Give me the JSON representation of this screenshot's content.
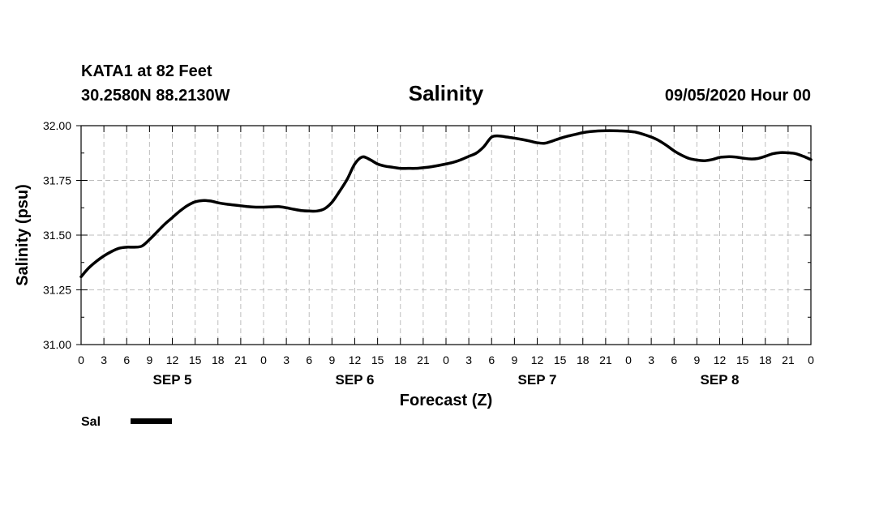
{
  "header": {
    "station": "KATA1 at 82 Feet",
    "coords": "30.2580N 88.2130W",
    "title": "Salinity",
    "datetime": "09/05/2020 Hour 00"
  },
  "legend": {
    "label": "Sal",
    "color": "#000000"
  },
  "chart_data": {
    "type": "line",
    "title": "Salinity",
    "xlabel": "Forecast (Z)",
    "ylabel": "Salinity (psu)",
    "ylim": [
      31.0,
      32.0
    ],
    "yticks": [
      "31.00",
      "31.25",
      "31.50",
      "31.75",
      "32.00"
    ],
    "xlim": [
      0,
      96
    ],
    "xtick_labels": [
      "0",
      "3",
      "6",
      "9",
      "12",
      "15",
      "18",
      "21",
      "0",
      "3",
      "6",
      "9",
      "12",
      "15",
      "18",
      "21",
      "0",
      "3",
      "6",
      "9",
      "12",
      "15",
      "18",
      "21",
      "0",
      "3",
      "6",
      "9",
      "12",
      "15",
      "18",
      "21",
      "0"
    ],
    "day_labels": [
      "SEP 5",
      "SEP 6",
      "SEP 7",
      "SEP 8"
    ],
    "grid": true,
    "legend_position": "bottom-left",
    "series": [
      {
        "name": "Sal",
        "color": "#000000",
        "x": [
          0,
          1,
          2,
          3,
          4,
          5,
          6,
          7,
          8,
          9,
          10,
          11,
          12,
          13,
          14,
          15,
          16,
          17,
          18,
          19,
          20,
          21,
          22,
          23,
          24,
          25,
          26,
          27,
          28,
          29,
          30,
          31,
          32,
          33,
          34,
          35,
          36,
          37,
          38,
          39,
          40,
          41,
          42,
          43,
          44,
          45,
          46,
          47,
          48,
          49,
          50,
          51,
          52,
          53,
          54,
          55,
          56,
          57,
          58,
          59,
          60,
          61,
          62,
          63,
          64,
          65,
          66,
          67,
          68,
          69,
          70,
          71,
          72,
          73,
          74,
          75,
          76,
          77,
          78,
          79,
          80,
          81,
          82,
          83,
          84,
          85,
          86,
          87,
          88,
          89,
          90,
          91,
          92,
          93,
          94,
          95,
          96
        ],
        "values": [
          31.31,
          31.35,
          31.38,
          31.405,
          31.425,
          31.44,
          31.445,
          31.445,
          31.45,
          31.48,
          31.515,
          31.55,
          31.58,
          31.61,
          31.635,
          31.652,
          31.658,
          31.656,
          31.648,
          31.642,
          31.638,
          31.634,
          31.63,
          31.628,
          31.628,
          31.629,
          31.63,
          31.625,
          31.618,
          31.612,
          31.61,
          31.61,
          31.62,
          31.65,
          31.7,
          31.755,
          31.825,
          31.857,
          31.845,
          31.825,
          31.815,
          31.81,
          31.805,
          31.805,
          31.805,
          31.808,
          31.812,
          31.818,
          31.825,
          31.833,
          31.845,
          31.86,
          31.875,
          31.905,
          31.948,
          31.953,
          31.948,
          31.943,
          31.937,
          31.93,
          31.922,
          31.92,
          31.93,
          31.942,
          31.952,
          31.96,
          31.968,
          31.973,
          31.976,
          31.977,
          31.977,
          31.976,
          31.974,
          31.97,
          31.96,
          31.948,
          31.932,
          31.91,
          31.885,
          31.865,
          31.85,
          31.843,
          31.84,
          31.845,
          31.855,
          31.858,
          31.857,
          31.852,
          31.848,
          31.85,
          31.86,
          31.872,
          31.877,
          31.876,
          31.872,
          31.86,
          31.845
        ]
      }
    ]
  }
}
